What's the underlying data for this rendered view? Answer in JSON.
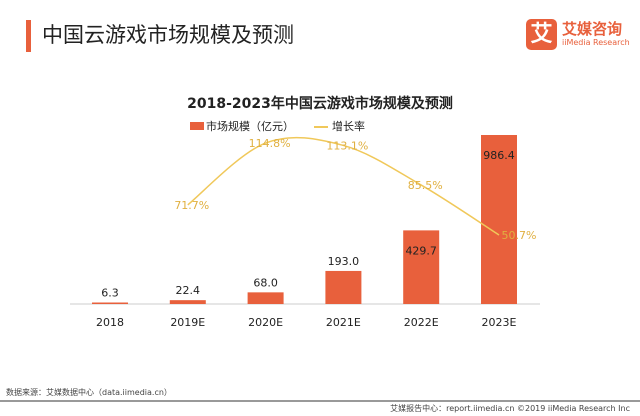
{
  "header": {
    "title": "中国云游戏市场规模及预测",
    "logo_cn": "艾媒咨询",
    "logo_en": "iiMedia Research",
    "logo_mark": "艾"
  },
  "chart_data": {
    "type": "bar+line",
    "title": "2018-2023年中国云游戏市场规模及预测",
    "categories": [
      "2018",
      "2019E",
      "2020E",
      "2021E",
      "2022E",
      "2023E"
    ],
    "series": [
      {
        "name": "市场规模（亿元）",
        "type": "bar",
        "color": "#e8603c",
        "values": [
          6.3,
          22.4,
          68.0,
          193.0,
          429.7,
          986.4
        ],
        "labels": [
          "6.3",
          "22.4",
          "68.0",
          "193.0",
          "429.7",
          "986.4"
        ]
      },
      {
        "name": "增长率",
        "type": "line",
        "color": "#f0c85a",
        "values": [
          null,
          71.7,
          114.8,
          113.1,
          85.5,
          50.7
        ],
        "labels": [
          "",
          "71.7%",
          "114.8%",
          "113.1%",
          "85.5%",
          "50.7%"
        ]
      }
    ],
    "legend": "top-center",
    "grid": false
  },
  "footer": {
    "source": "数据来源：艾媒数据中心（data.iimedia.cn）",
    "credit": "艾媒报告中心：report.iimedia.cn ©2019  iiMedia Research  Inc"
  }
}
